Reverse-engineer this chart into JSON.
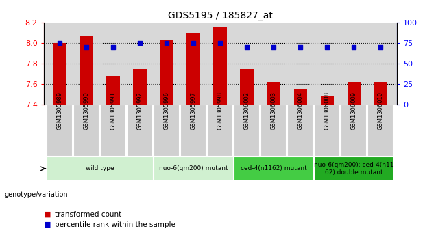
{
  "title": "GDS5195 / 185827_at",
  "samples": [
    "GSM1305989",
    "GSM1305990",
    "GSM1305991",
    "GSM1305992",
    "GSM1305996",
    "GSM1305997",
    "GSM1305998",
    "GSM1306002",
    "GSM1306003",
    "GSM1306004",
    "GSM1306008",
    "GSM1306009",
    "GSM1306010"
  ],
  "red_values": [
    8.0,
    8.07,
    7.68,
    7.75,
    8.03,
    8.09,
    8.15,
    7.75,
    7.62,
    7.55,
    7.48,
    7.62,
    7.62
  ],
  "blue_values": [
    75,
    70,
    70,
    75,
    75,
    75,
    75,
    70,
    70,
    70,
    70,
    70,
    70
  ],
  "ylim_left": [
    7.4,
    8.2
  ],
  "ylim_right": [
    0,
    100
  ],
  "yticks_left": [
    7.4,
    7.6,
    7.8,
    8.0,
    8.2
  ],
  "yticks_right": [
    0,
    25,
    50,
    75,
    100
  ],
  "groups": [
    {
      "label": "wild type",
      "indices": [
        0,
        1,
        2,
        3
      ],
      "color": "#d0f0d0"
    },
    {
      "label": "nuo-6(qm200) mutant",
      "indices": [
        4,
        5,
        6
      ],
      "color": "#d0f0d0"
    },
    {
      "label": "ced-4(n1162) mutant",
      "indices": [
        7,
        8,
        9
      ],
      "color": "#44cc44"
    },
    {
      "label": "nuo-6(qm200); ced-4(n11\n62) double mutant",
      "indices": [
        10,
        11,
        12
      ],
      "color": "#22aa22"
    }
  ],
  "red_color": "#cc0000",
  "blue_color": "#0000cc",
  "bar_width": 0.5,
  "bg_color": "#d8d8d8",
  "sample_cell_color": "#d0d0d0",
  "legend_red": "transformed count",
  "legend_blue": "percentile rank within the sample",
  "genotype_label": "genotype/variation"
}
